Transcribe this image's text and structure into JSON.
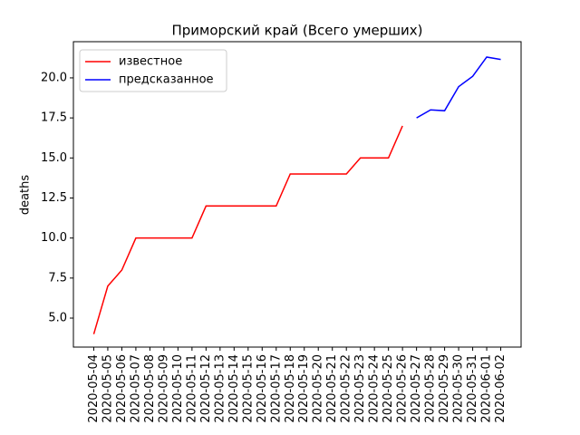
{
  "chart_data": {
    "type": "line",
    "title": "Приморский край (Всего умерших)",
    "y_label": "deaths",
    "categories": [
      "2020-05-04",
      "2020-05-05",
      "2020-05-06",
      "2020-05-07",
      "2020-05-08",
      "2020-05-09",
      "2020-05-10",
      "2020-05-11",
      "2020-05-12",
      "2020-05-13",
      "2020-05-14",
      "2020-05-15",
      "2020-05-16",
      "2020-05-17",
      "2020-05-18",
      "2020-05-19",
      "2020-05-20",
      "2020-05-21",
      "2020-05-22",
      "2020-05-23",
      "2020-05-24",
      "2020-05-25",
      "2020-05-26",
      "2020-05-27",
      "2020-05-28",
      "2020-05-29",
      "2020-05-30",
      "2020-05-31",
      "2020-06-01",
      "2020-06-02"
    ],
    "series": [
      {
        "name": "известное",
        "color": "#ff0000",
        "values": [
          4,
          7,
          8,
          10,
          10,
          10,
          10,
          10,
          12,
          12,
          12,
          12,
          12,
          12,
          14,
          14,
          14,
          14,
          14,
          15,
          15,
          15,
          17,
          null,
          null,
          null,
          null,
          null,
          null,
          null
        ]
      },
      {
        "name": "предсказанное",
        "color": "#0000ff",
        "values": [
          null,
          null,
          null,
          null,
          null,
          null,
          null,
          null,
          null,
          null,
          null,
          null,
          null,
          null,
          null,
          null,
          null,
          null,
          null,
          null,
          null,
          null,
          null,
          17.5,
          18.0,
          17.95,
          19.45,
          20.1,
          21.3,
          21.15
        ]
      }
    ],
    "ylim": [
      3.19,
      22.26
    ],
    "yticks": [
      {
        "value": 5,
        "label": "5.0"
      },
      {
        "value": 7.5,
        "label": "7.5"
      },
      {
        "value": 10,
        "label": "10.0"
      },
      {
        "value": 12.5,
        "label": "12.5"
      },
      {
        "value": 15,
        "label": "15.0"
      },
      {
        "value": 17.5,
        "label": "17.5"
      },
      {
        "value": 20,
        "label": "20.0"
      }
    ],
    "legend": "upper left"
  }
}
